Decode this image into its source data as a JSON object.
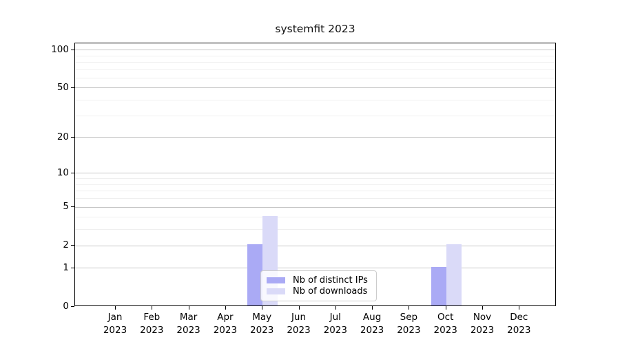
{
  "title": "systemfit 2023",
  "colors": {
    "ips_bar": "#aaaaf5",
    "downloads_bar": "#dadaf8",
    "grid_major": "#c6c6c6",
    "grid_minor": "#efefef",
    "axis": "#000000",
    "legend_border": "#cccccc"
  },
  "chart_data": {
    "type": "bar",
    "title": "systemfit 2023",
    "categories": [
      "Jan",
      "Feb",
      "Mar",
      "Apr",
      "May",
      "Jun",
      "Jul",
      "Aug",
      "Sep",
      "Oct",
      "Nov",
      "Dec"
    ],
    "x_year_label": "2023",
    "series": [
      {
        "name": "Nb of distinct IPs",
        "color": "#aaaaf5",
        "values": [
          0,
          0,
          0,
          0,
          2,
          0,
          0,
          0,
          0,
          1,
          0,
          0
        ]
      },
      {
        "name": "Nb of downloads",
        "color": "#dadaf8",
        "values": [
          0,
          0,
          0,
          0,
          4,
          0,
          0,
          0,
          0,
          2,
          0,
          0
        ]
      }
    ],
    "y_axis": {
      "scale": "log1p",
      "ticks": [
        0,
        1,
        2,
        5,
        10,
        20,
        50,
        100
      ],
      "minor_ticks": [
        3,
        4,
        6,
        7,
        8,
        9,
        30,
        40,
        60,
        70,
        80,
        90
      ],
      "range_max": 100
    },
    "xlabel": "",
    "ylabel": "",
    "grid": true,
    "legend_position": "lower-center-inside"
  },
  "legend": {
    "items": [
      {
        "label": "Nb of distinct IPs",
        "color": "#aaaaf5"
      },
      {
        "label": "Nb of downloads",
        "color": "#dadaf8"
      }
    ]
  }
}
